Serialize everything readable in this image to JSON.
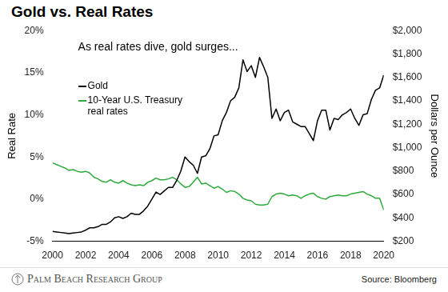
{
  "chart_data": {
    "type": "line",
    "title": "Gold vs. Real Rates",
    "annotation": "As real rates dive, gold surges...",
    "source": "Source: Bloomberg",
    "branding": "Palm Beach Research Group",
    "x": [
      2000,
      2000.25,
      2000.5,
      2000.75,
      2001,
      2001.25,
      2001.5,
      2001.75,
      2002,
      2002.25,
      2002.5,
      2002.75,
      2003,
      2003.25,
      2003.5,
      2003.75,
      2004,
      2004.25,
      2004.5,
      2004.75,
      2005,
      2005.25,
      2005.5,
      2005.75,
      2006,
      2006.25,
      2006.5,
      2006.75,
      2007,
      2007.25,
      2007.5,
      2007.75,
      2008,
      2008.25,
      2008.5,
      2008.75,
      2009,
      2009.25,
      2009.5,
      2009.75,
      2010,
      2010.25,
      2010.5,
      2010.75,
      2011,
      2011.25,
      2011.5,
      2011.75,
      2012,
      2012.25,
      2012.5,
      2012.75,
      2013,
      2013.25,
      2013.5,
      2013.75,
      2014,
      2014.25,
      2014.5,
      2014.75,
      2015,
      2015.25,
      2015.5,
      2015.75,
      2016,
      2016.25,
      2016.5,
      2016.75,
      2017,
      2017.25,
      2017.5,
      2017.75,
      2018,
      2018.25,
      2018.5,
      2018.75,
      2019,
      2019.25,
      2019.5,
      2019.75,
      2020
    ],
    "series": [
      {
        "name": "Gold",
        "color": "#000000",
        "axis": "y2",
        "values": [
          285,
          280,
          275,
          270,
          265,
          270,
          275,
          280,
          295,
          315,
          315,
          325,
          345,
          345,
          365,
          400,
          410,
          395,
          410,
          440,
          430,
          430,
          460,
          500,
          560,
          620,
          600,
          630,
          660,
          660,
          720,
          800,
          920,
          880,
          850,
          780,
          920,
          930,
          990,
          1100,
          1110,
          1230,
          1300,
          1400,
          1430,
          1510,
          1750,
          1650,
          1700,
          1600,
          1770,
          1690,
          1600,
          1250,
          1330,
          1230,
          1300,
          1320,
          1220,
          1200,
          1180,
          1180,
          1120,
          1060,
          1230,
          1320,
          1320,
          1150,
          1250,
          1240,
          1280,
          1300,
          1330,
          1250,
          1190,
          1280,
          1290,
          1410,
          1490,
          1510,
          1620
        ]
      },
      {
        "name": "10-Year U.S. Treasury real rates",
        "color": "#2eaa3c",
        "values": [
          4.3,
          4.1,
          3.9,
          3.7,
          3.4,
          3.5,
          3.3,
          3.2,
          3.3,
          3.1,
          2.6,
          2.4,
          2.1,
          2.0,
          2.3,
          2.0,
          1.9,
          2.2,
          1.9,
          1.7,
          1.6,
          1.7,
          1.6,
          2.0,
          2.2,
          2.5,
          2.3,
          2.3,
          2.4,
          2.6,
          2.3,
          1.8,
          1.4,
          1.5,
          2.0,
          2.6,
          1.8,
          1.9,
          1.6,
          1.3,
          1.5,
          1.2,
          0.8,
          1.0,
          0.9,
          0.6,
          0.1,
          -0.1,
          -0.2,
          -0.6,
          -0.7,
          -0.7,
          -0.6,
          0.3,
          0.6,
          0.7,
          0.6,
          0.4,
          0.5,
          0.4,
          0.1,
          0.4,
          0.6,
          0.7,
          0.3,
          0.1,
          0.0,
          0.3,
          0.4,
          0.5,
          0.4,
          0.4,
          0.6,
          0.7,
          0.8,
          0.9,
          0.6,
          0.4,
          0.1,
          0.1,
          -1.3
        ]
      }
    ],
    "xlim": [
      2000,
      2020
    ],
    "xticks": [
      2000,
      2002,
      2004,
      2006,
      2008,
      2010,
      2012,
      2014,
      2016,
      2018,
      2020
    ],
    "ylim": [
      -5,
      20
    ],
    "yticks": [
      {
        "value": -5,
        "label": "-5%"
      },
      {
        "value": 0,
        "label": "0%"
      },
      {
        "value": 5,
        "label": "5%"
      },
      {
        "value": 10,
        "label": "10%"
      },
      {
        "value": 15,
        "label": "15%"
      },
      {
        "value": 20,
        "label": "20%"
      }
    ],
    "y2lim": [
      200,
      2000
    ],
    "y2ticks": [
      {
        "value": 200,
        "label": "$200"
      },
      {
        "value": 400,
        "label": "$400"
      },
      {
        "value": 600,
        "label": "$600"
      },
      {
        "value": 800,
        "label": "$800"
      },
      {
        "value": 1000,
        "label": "$1,000"
      },
      {
        "value": 1200,
        "label": "$1,200"
      },
      {
        "value": 1400,
        "label": "$1,400"
      },
      {
        "value": 1600,
        "label": "$1,600"
      },
      {
        "value": 1800,
        "label": "$1,800"
      },
      {
        "value": 2000,
        "label": "$2,000"
      }
    ],
    "ylabel": "Real Rate",
    "y2label": "Dollars per Ounce",
    "grid": false,
    "legend": "upper left"
  }
}
